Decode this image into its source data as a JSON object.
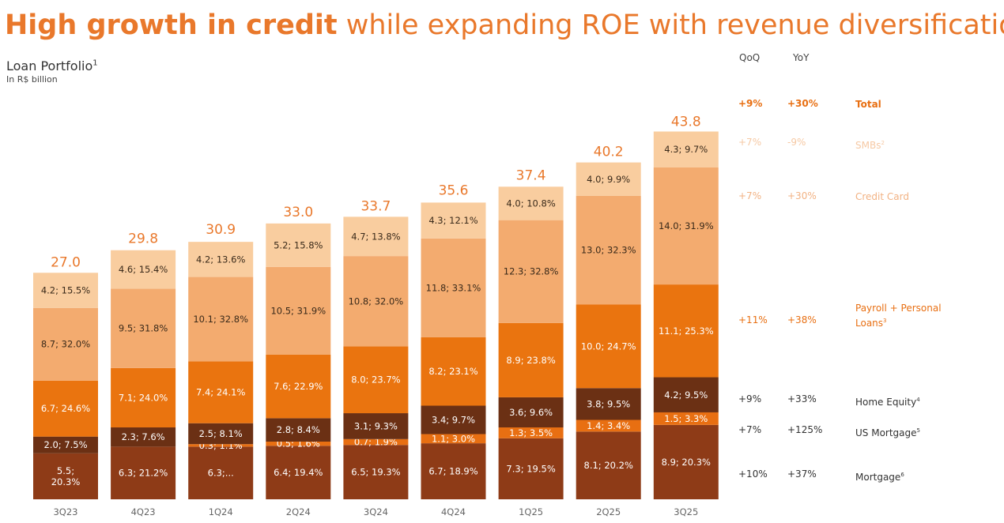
{
  "title": {
    "bold": "High growth in credit",
    "rest": "while expanding ROE with revenue diversification"
  },
  "subtitle": {
    "text": "Loan Portfolio",
    "sup": "1"
  },
  "unit": "In R$ billion",
  "side": {
    "qoq_header": "QoQ",
    "yoy_header": "YoY"
  },
  "side_rows": [
    {
      "qoq": "+9%",
      "yoy": "+30%",
      "name": "Total",
      "sup": "",
      "color": "#e86f12",
      "bold": true
    },
    {
      "qoq": "+7%",
      "yoy": "-9%",
      "name": "SMBs",
      "sup": "2",
      "color": "#f6c9a4",
      "bold": false
    },
    {
      "qoq": "+7%",
      "yoy": "+30%",
      "name": "Credit Card",
      "sup": "",
      "color": "#f2b283",
      "bold": false
    },
    {
      "qoq": "+11%",
      "yoy": "+38%",
      "name": "Payroll + Personal",
      "name2": "Loans",
      "sup": "3",
      "color": "#e86f12",
      "bold": false
    },
    {
      "qoq": "+9%",
      "yoy": "+33%",
      "name": "Home Equity",
      "sup": "4",
      "color": "#333333",
      "bold": false
    },
    {
      "qoq": "+7%",
      "yoy": "+125%",
      "name": "US Mortgage",
      "sup": "5",
      "color": "#333333",
      "bold": false
    },
    {
      "qoq": "+10%",
      "yoy": "+37%",
      "name": "Mortgage",
      "sup": "6",
      "color": "#333333",
      "bold": false
    }
  ],
  "chart_data": {
    "type": "bar",
    "stacked": true,
    "title": "Loan Portfolio",
    "ylabel": "In R$ billion",
    "categories": [
      "3Q23",
      "4Q23",
      "1Q24",
      "2Q24",
      "3Q24",
      "4Q24",
      "1Q25",
      "2Q25",
      "3Q25"
    ],
    "totals": [
      27.0,
      29.8,
      30.9,
      33.0,
      33.7,
      35.6,
      37.4,
      40.2,
      43.8
    ],
    "total_labels": [
      "27.0",
      "29.8",
      "30.9",
      "33.0",
      "33.7",
      "35.6",
      "37.4",
      "40.2",
      "43.8"
    ],
    "series": [
      {
        "name": "Mortgage",
        "color": "#8e3b17",
        "label_color": "#ffffff",
        "values": [
          5.5,
          6.3,
          6.3,
          6.4,
          6.5,
          6.7,
          7.3,
          8.1,
          8.9
        ],
        "labels": [
          "5.5;\n20.3%",
          "6.3; 21.2%",
          "6.3;...",
          "6.4; 19.4%",
          "6.5; 19.3%",
          "6.7; 18.9%",
          "7.3; 19.5%",
          "8.1; 20.2%",
          "8.9; 20.3%"
        ]
      },
      {
        "name": "US Mortgage",
        "color": "#e86f12",
        "label_color": "#ffffff",
        "values": [
          0,
          0,
          0.3,
          0.5,
          0.7,
          1.1,
          1.3,
          1.4,
          1.5
        ],
        "labels": [
          "",
          "",
          "0.3; 1.1%",
          "0.5; 1.6%",
          "0.7; 1.9%",
          "1.1; 3.0%",
          "1.3; 3.5%",
          "1.4; 3.4%",
          "1.5; 3.3%"
        ]
      },
      {
        "name": "Home Equity",
        "color": "#6b3014",
        "label_color": "#ffffff",
        "values": [
          2.0,
          2.3,
          2.5,
          2.8,
          3.1,
          3.4,
          3.6,
          3.8,
          4.2
        ],
        "labels": [
          "2.0; 7.5%",
          "2.3; 7.6%",
          "2.5; 8.1%",
          "2.8; 8.4%",
          "3.1; 9.3%",
          "3.4; 9.7%",
          "3.6; 9.6%",
          "3.8; 9.5%",
          "4.2; 9.5%"
        ]
      },
      {
        "name": "Payroll + Personal Loans",
        "color": "#ea740f",
        "label_color": "#ffffff",
        "values": [
          6.7,
          7.1,
          7.4,
          7.6,
          8.0,
          8.2,
          8.9,
          10.0,
          11.1
        ],
        "labels": [
          "6.7; 24.6%",
          "7.1; 24.0%",
          "7.4; 24.1%",
          "7.6; 22.9%",
          "8.0; 23.7%",
          "8.2; 23.1%",
          "8.9; 23.8%",
          "10.0; 24.7%",
          "11.1; 25.3%"
        ]
      },
      {
        "name": "Credit Card",
        "color": "#f3ab6f",
        "label_color": "#3a2a1a",
        "values": [
          8.7,
          9.5,
          10.1,
          10.5,
          10.8,
          11.8,
          12.3,
          13.0,
          14.0
        ],
        "labels": [
          "8.7; 32.0%",
          "9.5; 31.8%",
          "10.1; 32.8%",
          "10.5; 31.9%",
          "10.8; 32.0%",
          "11.8; 33.1%",
          "12.3; 32.8%",
          "13.0; 32.3%",
          "14.0; 31.9%"
        ]
      },
      {
        "name": "SMBs",
        "color": "#f9cd9f",
        "label_color": "#3a2a1a",
        "values": [
          4.2,
          4.6,
          4.2,
          5.2,
          4.7,
          4.3,
          4.0,
          4.0,
          4.3
        ],
        "labels": [
          "4.2; 15.5%",
          "4.6; 15.4%",
          "4.2; 13.6%",
          "5.2; 15.8%",
          "4.7; 13.8%",
          "4.3; 12.1%",
          "4.0; 10.8%",
          "4.0; 9.9%",
          "4.3; 9.7%"
        ]
      }
    ]
  }
}
